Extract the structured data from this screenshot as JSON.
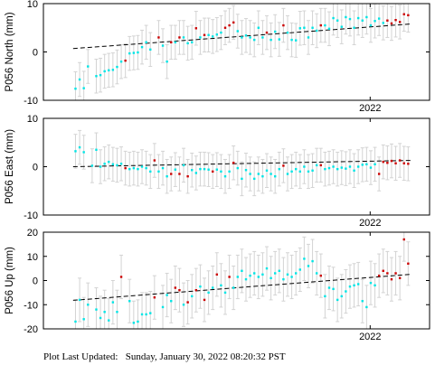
{
  "footer": {
    "label": "Plot Last Updated:",
    "timestamp": "Sunday, January 30, 2022 08:20:32 PST"
  },
  "colors": {
    "early_points": "#00e5e5",
    "recent_points": "#cc0000",
    "error_bars": "#d3d3d3",
    "trend_line": "#000000"
  },
  "chart_data": [
    {
      "type": "scatter",
      "station": "P056",
      "component": "North",
      "ylabel": "P056 North (mm)",
      "ylim": [
        -10,
        10
      ],
      "yticks": [
        -10,
        0,
        10
      ],
      "xlim": [
        2021.45,
        2022.1
      ],
      "xticks": [
        2022.0
      ],
      "xticklabels": [
        "2022"
      ],
      "grid": false,
      "error_bar_mm": 3.5,
      "trend": {
        "x": [
          2021.5,
          2022.07
        ],
        "y": [
          0.7,
          5.8
        ]
      },
      "series": [
        {
          "color": "early",
          "x": [
            2021.504,
            2021.511,
            2021.518,
            2021.525,
            2021.539,
            2021.546,
            2021.553,
            2021.56,
            2021.567,
            2021.574,
            2021.581,
            2021.595,
            2021.602,
            2021.609,
            2021.616,
            2021.623,
            2021.63,
            2021.651,
            2021.658,
            2021.672,
            2021.686,
            2021.693,
            2021.7,
            2021.714,
            2021.728,
            2021.735,
            2021.742,
            2021.749,
            2021.777,
            2021.784,
            2021.791,
            2021.798,
            2021.805,
            2021.812,
            2021.819,
            2021.833,
            2021.84,
            2021.847,
            2021.861,
            2021.868,
            2021.875,
            2021.882,
            2021.889,
            2021.896,
            2021.903,
            2021.91,
            2021.924,
            2021.931,
            2021.938,
            2021.945,
            2021.952,
            2021.959,
            2021.966,
            2021.973,
            2021.98,
            2021.987,
            2021.994,
            2022.001,
            2022.008,
            2022.015,
            2022.022
          ],
          "y": [
            -7.6,
            -5.7,
            -7.5,
            -3.0,
            -5.0,
            -4.8,
            -4.0,
            -3.8,
            -3.7,
            -3.1,
            -2.0,
            -0.3,
            -0.2,
            -0.1,
            1.0,
            2.0,
            0.5,
            1.3,
            -2.0,
            2.0,
            3.0,
            1.8,
            2.0,
            3.0,
            3.5,
            3.2,
            3.6,
            4.0,
            4.3,
            3.0,
            3.4,
            3.0,
            2.5,
            5.0,
            3.0,
            2.5,
            4.2,
            2.6,
            4.0,
            2.5,
            2.4,
            4.9,
            5.0,
            3.0,
            5.0,
            4.4,
            5.5,
            4.8,
            7.0,
            6.5,
            5.2,
            7.2,
            6.8,
            5.0,
            7.0,
            6.5,
            7.2,
            5.5,
            6.4,
            6.9,
            6.0
          ]
        },
        {
          "color": "recent",
          "x": [
            2021.588,
            2021.644,
            2021.665,
            2021.679,
            2021.707,
            2021.721,
            2021.756,
            2021.763,
            2021.77,
            2021.826,
            2021.854,
            2021.917,
            2022.029,
            2022.036,
            2022.043,
            2022.05,
            2022.057,
            2022.064
          ],
          "y": [
            -1.8,
            3.0,
            2.0,
            3.0,
            4.9,
            3.5,
            5.0,
            5.5,
            6.1,
            4.0,
            5.5,
            5.5,
            6.5,
            5.9,
            6.6,
            6.2,
            7.8,
            7.6
          ]
        }
      ]
    },
    {
      "type": "scatter",
      "station": "P056",
      "component": "East",
      "ylabel": "P056 East (mm)",
      "ylim": [
        -10,
        10
      ],
      "yticks": [
        -10,
        0,
        10
      ],
      "xlim": [
        2021.45,
        2022.1
      ],
      "xticks": [
        2022.0
      ],
      "xticklabels": [
        "2022"
      ],
      "grid": false,
      "error_bar_mm": 3.5,
      "trend": {
        "x": [
          2021.5,
          2022.07
        ],
        "y": [
          0.0,
          1.3
        ]
      },
      "series": [
        {
          "color": "early",
          "x": [
            2021.504,
            2021.511,
            2021.518,
            2021.532,
            2021.539,
            2021.546,
            2021.553,
            2021.56,
            2021.567,
            2021.574,
            2021.581,
            2021.595,
            2021.602,
            2021.609,
            2021.616,
            2021.623,
            2021.63,
            2021.644,
            2021.651,
            2021.658,
            2021.672,
            2021.686,
            2021.7,
            2021.707,
            2021.714,
            2021.721,
            2021.728,
            2021.742,
            2021.749,
            2021.756,
            2021.763,
            2021.777,
            2021.784,
            2021.791,
            2021.798,
            2021.805,
            2021.812,
            2021.819,
            2021.826,
            2021.833,
            2021.84,
            2021.847,
            2021.861,
            2021.868,
            2021.875,
            2021.882,
            2021.889,
            2021.896,
            2021.903,
            2021.91,
            2021.924,
            2021.931,
            2021.938,
            2021.945,
            2021.952,
            2021.959,
            2021.966,
            2021.973,
            2021.98,
            2021.987,
            2021.994,
            2022.001,
            2022.008
          ],
          "y": [
            3.2,
            4.0,
            3.0,
            0.2,
            3.5,
            0.0,
            0.6,
            1.0,
            0.5,
            0.3,
            0.6,
            -0.5,
            -0.3,
            -0.5,
            0.0,
            -0.3,
            -1.0,
            -1.0,
            -0.3,
            -2.0,
            -0.6,
            0.3,
            -0.7,
            -1.3,
            -0.5,
            -0.5,
            -0.6,
            -0.6,
            -1.0,
            -2.0,
            -1.0,
            -0.3,
            -2.5,
            -0.7,
            -1.5,
            -2.5,
            -1.5,
            -2.0,
            -0.8,
            -1.5,
            -2.0,
            -0.5,
            -1.5,
            -1.0,
            -0.5,
            -1.0,
            0.0,
            -1.0,
            -0.8,
            0.3,
            -0.5,
            -0.3,
            0.0,
            -0.5,
            -0.2,
            -0.4,
            0.0,
            -0.8,
            0.0,
            0.4,
            0.5,
            -0.2,
            0.5
          ]
        },
        {
          "color": "recent",
          "x": [
            2021.588,
            2021.637,
            2021.665,
            2021.679,
            2021.693,
            2021.735,
            2021.77,
            2021.854,
            2021.917,
            2022.015,
            2022.022,
            2022.029,
            2022.036,
            2022.043,
            2022.05,
            2022.057,
            2022.064
          ],
          "y": [
            -0.3,
            1.3,
            -1.5,
            -1.5,
            -2.0,
            -1.0,
            0.8,
            0.2,
            0.3,
            -1.5,
            1.0,
            0.8,
            1.2,
            0.7,
            1.3,
            0.7,
            0.6
          ]
        }
      ]
    },
    {
      "type": "scatter",
      "station": "P056",
      "component": "Up",
      "ylabel": "P056 Up (mm)",
      "ylim": [
        -20,
        20
      ],
      "yticks": [
        -20,
        -10,
        0,
        10,
        20
      ],
      "xlim": [
        2021.45,
        2022.1
      ],
      "xticks": [
        2022.0
      ],
      "xticklabels": [
        "2022"
      ],
      "grid": false,
      "error_bar_mm": 9,
      "trend": {
        "x": [
          2021.5,
          2022.07
        ],
        "y": [
          -8.2,
          2.6
        ]
      },
      "series": [
        {
          "color": "early",
          "x": [
            2021.504,
            2021.511,
            2021.518,
            2021.525,
            2021.539,
            2021.546,
            2021.553,
            2021.56,
            2021.567,
            2021.574,
            2021.595,
            2021.602,
            2021.609,
            2021.616,
            2021.623,
            2021.63,
            2021.651,
            2021.658,
            2021.665,
            2021.686,
            2021.7,
            2021.714,
            2021.728,
            2021.735,
            2021.749,
            2021.756,
            2021.77,
            2021.777,
            2021.784,
            2021.791,
            2021.798,
            2021.805,
            2021.812,
            2021.819,
            2021.826,
            2021.833,
            2021.84,
            2021.847,
            2021.854,
            2021.861,
            2021.868,
            2021.875,
            2021.882,
            2021.889,
            2021.896,
            2021.903,
            2021.91,
            2021.924,
            2021.931,
            2021.938,
            2021.945,
            2021.952,
            2021.959,
            2021.966,
            2021.973,
            2021.98,
            2021.987,
            2021.994,
            2022.001,
            2022.008
          ],
          "y": [
            -17.0,
            -8.0,
            -16.0,
            -10.0,
            -12.0,
            -15.5,
            -13.0,
            -16.5,
            -9.0,
            -13.0,
            -8.5,
            -17.5,
            -17.0,
            -14.0,
            -14.0,
            -13.5,
            -11.0,
            -6.0,
            -8.5,
            -10.0,
            -6.5,
            -2.5,
            -5.0,
            -3.0,
            -2.0,
            -5.0,
            -3.0,
            1.5,
            4.0,
            0.5,
            2.0,
            3.0,
            1.5,
            2.5,
            5.0,
            1.0,
            3.0,
            4.0,
            0.5,
            2.5,
            1.5,
            3.0,
            4.5,
            9.0,
            6.0,
            8.0,
            3.0,
            -6.5,
            -3.0,
            -3.5,
            -8.0,
            -6.5,
            -4.5,
            -2.5,
            -2.0,
            -1.5,
            -8.5,
            -11.0,
            -1.0,
            -2.0
          ]
        },
        {
          "color": "recent",
          "x": [
            2021.581,
            2021.637,
            2021.672,
            2021.679,
            2021.693,
            2021.707,
            2021.721,
            2021.742,
            2021.763,
            2021.917,
            2022.015,
            2022.022,
            2022.029,
            2022.036,
            2022.043,
            2022.05,
            2022.057,
            2022.064
          ],
          "y": [
            1.5,
            -7.0,
            -3.0,
            -4.0,
            -9.0,
            -4.0,
            -8.0,
            2.5,
            1.5,
            2.0,
            2.0,
            4.0,
            3.0,
            0.5,
            3.0,
            1.0,
            17.0,
            7.0
          ]
        }
      ]
    }
  ]
}
